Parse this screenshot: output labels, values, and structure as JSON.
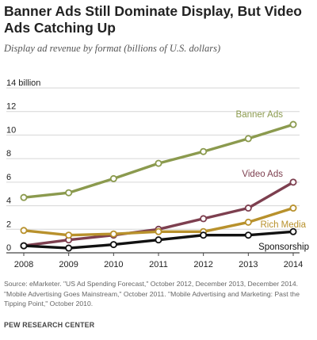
{
  "header": {
    "title": "Banner Ads Still Dominate Display, But Video Ads Catching Up",
    "subtitle": "Display ad revenue by format (billions of U.S. dollars)"
  },
  "footer": {
    "source": "Source: eMarketer. \"US Ad Spending Forecast,\" October 2012, December 2013, December 2014. \"Mobile Advertising Goes Mainstream,\" October 2011. \"Mobile Advertising and Marketing: Past the Tipping Point,\" October 2010.",
    "credit": "PEW RESEARCH CENTER"
  },
  "chart_data": {
    "type": "line",
    "title": "Banner Ads Still Dominate Display, But Video Ads Catching Up",
    "subtitle": "Display ad revenue by format (billions of U.S. dollars)",
    "x": [
      2008,
      2009,
      2010,
      2011,
      2012,
      2013,
      2014
    ],
    "y_ticks": [
      {
        "value": 0,
        "label": "0"
      },
      {
        "value": 2,
        "label": "2"
      },
      {
        "value": 4,
        "label": "4"
      },
      {
        "value": 6,
        "label": "6"
      },
      {
        "value": 8,
        "label": "8"
      },
      {
        "value": 10,
        "label": "10"
      },
      {
        "value": 12,
        "label": "12"
      },
      {
        "value": 14,
        "label": "14 billion"
      }
    ],
    "ylim": [
      0,
      14
    ],
    "grid": true,
    "series": [
      {
        "name": "Banner Ads",
        "color": "#8b9a4e",
        "values": [
          4.7,
          5.1,
          6.3,
          7.6,
          8.6,
          9.7,
          10.9
        ]
      },
      {
        "name": "Video Ads",
        "color": "#7d3f4f",
        "values": [
          0.6,
          1.1,
          1.5,
          2.0,
          2.9,
          3.8,
          6.0
        ]
      },
      {
        "name": "Rich Media",
        "color": "#b8912c",
        "values": [
          1.9,
          1.5,
          1.6,
          1.8,
          1.8,
          2.6,
          3.8
        ]
      },
      {
        "name": "Sponsorship",
        "color": "#111111",
        "values": [
          0.6,
          0.4,
          0.7,
          1.1,
          1.5,
          1.5,
          1.8
        ]
      }
    ]
  }
}
